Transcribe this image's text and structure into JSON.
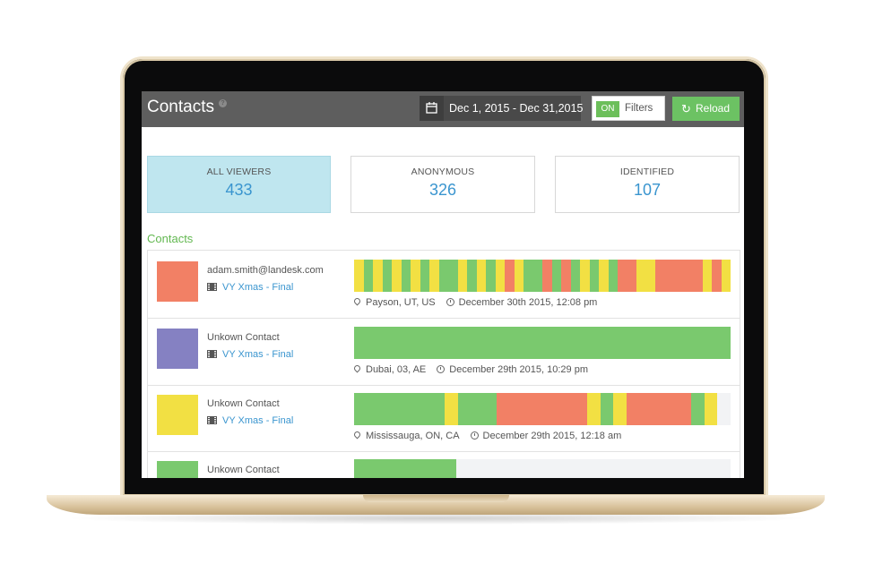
{
  "header": {
    "title": "Contacts",
    "help_icon": "help-circle-icon",
    "date_range": "Dec 1, 2015 - Dec 31,2015",
    "calendar_icon": "calendar-icon",
    "filters_toggle": "ON",
    "filters_label": "Filters",
    "reload_label": "Reload",
    "reload_icon": "refresh-icon"
  },
  "stats": [
    {
      "label": "ALL VIEWERS",
      "value": "433",
      "active": true
    },
    {
      "label": "ANONYMOUS",
      "value": "326",
      "active": false
    },
    {
      "label": "IDENTIFIED",
      "value": "107",
      "active": false
    }
  ],
  "section_title": "Contacts",
  "colors": {
    "green": "#7ac96e",
    "yellow": "#f2e043",
    "orange": "#f28065",
    "purple": "#8581c2",
    "link_blue": "#3a95cf",
    "empty": "#f2f3f5"
  },
  "contacts": [
    {
      "name": "adam.smith@landesk.com",
      "color": "#f28065",
      "video": "VY Xmas - Final",
      "location": "Payson, UT, US",
      "time": "December 30th 2015, 12:08 pm",
      "timeline_pattern": [
        "y",
        "g",
        "y",
        "g",
        "y",
        "g",
        "y",
        "g",
        "y",
        "g",
        "g",
        "y",
        "g",
        "y",
        "g",
        "y",
        "o",
        "y",
        "g",
        "g",
        "o",
        "g",
        "o",
        "g",
        "y",
        "g",
        "y",
        "g",
        "o",
        "o",
        "y",
        "y",
        "o",
        "o",
        "o",
        "o",
        "o",
        "y",
        "o",
        "y"
      ]
    },
    {
      "name": "Unkown Contact",
      "color": "#8581c2",
      "video": "VY Xmas - Final",
      "location": "Dubai, 03, AE",
      "time": "December 29th 2015, 10:29 pm",
      "timeline_pattern": [
        "g"
      ]
    },
    {
      "name": "Unkown Contact",
      "color": "#f2e043",
      "video": "VY Xmas - Final",
      "location": "Mississauga, ON, CA",
      "time": "December 29th 2015, 12:18 am",
      "timeline_pattern": [
        "g",
        "g",
        "g",
        "g",
        "g",
        "g",
        "g",
        "y",
        "g",
        "g",
        "g",
        "o",
        "o",
        "o",
        "o",
        "o",
        "o",
        "o",
        "y",
        "g",
        "y",
        "o",
        "o",
        "o",
        "o",
        "o",
        "g",
        "y",
        "e"
      ]
    },
    {
      "name": "Unkown Contact",
      "color": "#7ac96e",
      "video": "",
      "location": "",
      "time": "",
      "timeline_pattern": [
        "g",
        "g",
        "g",
        "g",
        "g",
        "g",
        "e",
        "e",
        "e",
        "e",
        "e",
        "e",
        "e",
        "e",
        "e",
        "e",
        "e",
        "e",
        "e",
        "e",
        "e",
        "e"
      ]
    }
  ]
}
